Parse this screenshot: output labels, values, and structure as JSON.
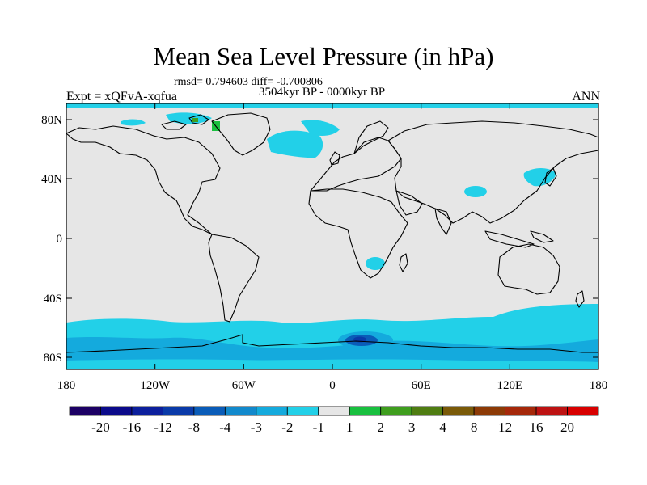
{
  "header": {
    "title": "Mean Sea Level Pressure (in hPa)",
    "stats": "rmsd= 0.794603 diff= -0.700806",
    "period": "3504kyr BP - 0000kyr BP",
    "experiment": "Expt = xQFvA-xqfua",
    "season": "ANN"
  },
  "map": {
    "projection": "cylindrical-equidistant",
    "lon_range": [
      -180,
      180
    ],
    "lat_range": [
      -90,
      90
    ],
    "background_color": "#e6e6e6",
    "coastline_color": "#000000",
    "x_ticks": [
      {
        "value": -180,
        "label": "180"
      },
      {
        "value": -120,
        "label": "120W"
      },
      {
        "value": -60,
        "label": "60W"
      },
      {
        "value": 0,
        "label": "0"
      },
      {
        "value": 60,
        "label": "60E"
      },
      {
        "value": 120,
        "label": "120E"
      },
      {
        "value": 180,
        "label": "180"
      }
    ],
    "y_ticks": [
      {
        "value": 80,
        "label": "80N"
      },
      {
        "value": 40,
        "label": "40N"
      },
      {
        "value": 0,
        "label": "0"
      },
      {
        "value": -40,
        "label": "40S"
      },
      {
        "value": -80,
        "label": "80S"
      }
    ]
  },
  "colorbar": {
    "levels": [
      "-20",
      "-16",
      "-12",
      "-8",
      "-4",
      "-3",
      "-2",
      "-1",
      "1",
      "2",
      "3",
      "4",
      "8",
      "12",
      "16",
      "20"
    ],
    "colors": [
      "#1c0064",
      "#0b0a8a",
      "#0c1f9c",
      "#0a3aa8",
      "#0a5cb8",
      "#1289cc",
      "#14aadd",
      "#22d0e8",
      "#e6e6e6",
      "#19c03f",
      "#3f9e1e",
      "#4f7d12",
      "#7a5a08",
      "#8c3a06",
      "#a5280a",
      "#bd1212",
      "#d80000"
    ]
  }
}
